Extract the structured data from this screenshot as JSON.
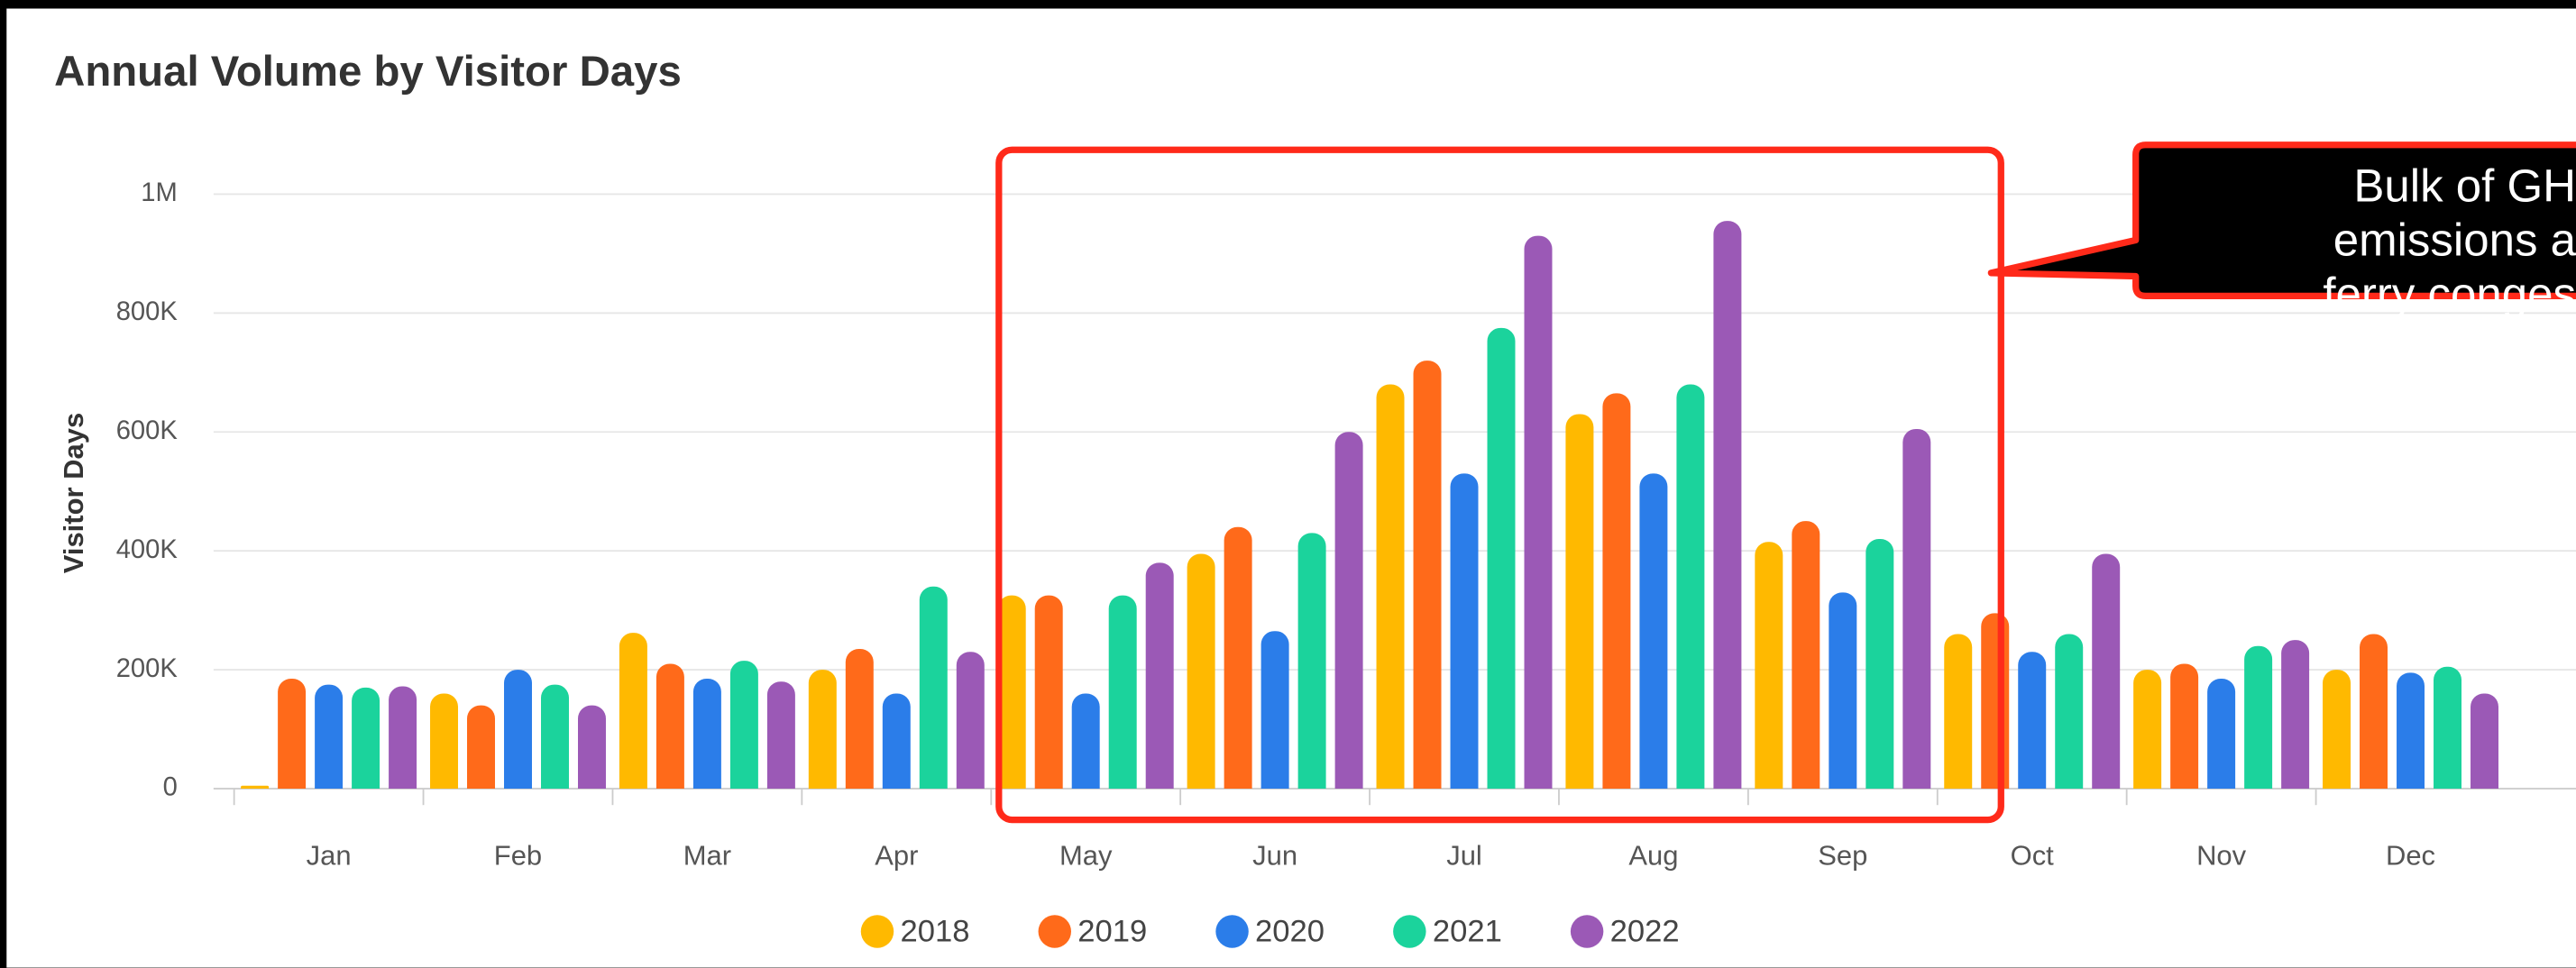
{
  "chart_data": {
    "type": "bar",
    "title": "Annual Volume by Visitor Days",
    "y_label": "Visitor Days",
    "categories": [
      "Jan",
      "Feb",
      "Mar",
      "Apr",
      "May",
      "Jun",
      "Jul",
      "Aug",
      "Sep",
      "Oct",
      "Nov",
      "Dec"
    ],
    "series": [
      {
        "name": "2018",
        "color": "#ffb900",
        "values": [
          5000,
          160000,
          262000,
          200000,
          325000,
          395000,
          680000,
          630000,
          415000,
          260000,
          200000,
          200000
        ]
      },
      {
        "name": "2019",
        "color": "#ff6a1a",
        "values": [
          185000,
          140000,
          210000,
          235000,
          325000,
          440000,
          720000,
          665000,
          450000,
          295000,
          210000,
          260000
        ]
      },
      {
        "name": "2020",
        "color": "#2b7de9",
        "values": [
          175000,
          200000,
          185000,
          160000,
          160000,
          265000,
          530000,
          530000,
          330000,
          230000,
          185000,
          195000
        ]
      },
      {
        "name": "2021",
        "color": "#1bd39c",
        "values": [
          170000,
          175000,
          215000,
          340000,
          325000,
          430000,
          775000,
          680000,
          420000,
          260000,
          240000,
          205000
        ]
      },
      {
        "name": "2022",
        "color": "#9b59b6",
        "values": [
          172000,
          140000,
          180000,
          230000,
          380000,
          600000,
          930000,
          955000,
          605000,
          395000,
          250000,
          160000
        ]
      }
    ],
    "ylim": [
      0,
      1000000
    ],
    "yticks": [
      0,
      {
        "value": 200000,
        "label": "200K"
      },
      {
        "value": 400000,
        "label": "400K"
      },
      {
        "value": 600000,
        "label": "600K"
      },
      {
        "value": 800000,
        "label": "800K"
      },
      {
        "value": 1000000,
        "label": "1M"
      }
    ],
    "grid": true,
    "legend": "bottom",
    "annotation": {
      "lines": [
        "Bulk of GH",
        "emissions a",
        "ferry conges"
      ]
    }
  }
}
